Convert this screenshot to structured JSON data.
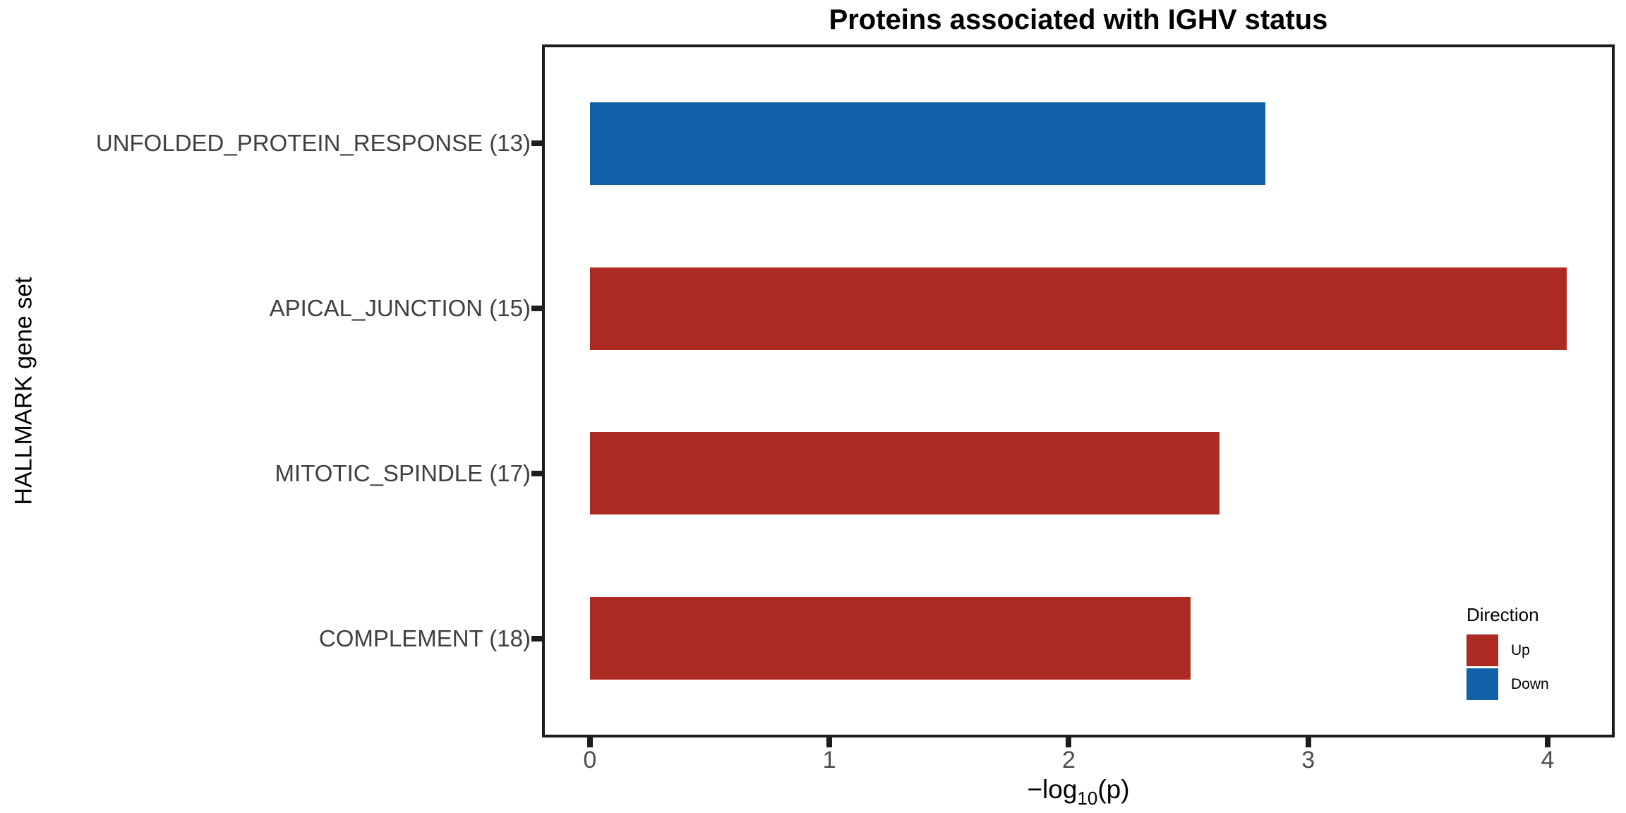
{
  "chart_data": {
    "type": "bar",
    "orientation": "horizontal",
    "title": "Proteins associated with IGHV status",
    "xlabel": "−log10(p)",
    "xlabel_parts": {
      "prefix": "−log",
      "sub": "10",
      "suffix": "(p)"
    },
    "ylabel": "HALLMARK gene set",
    "categories": [
      "UNFOLDED_PROTEIN_RESPONSE (13)",
      "APICAL_JUNCTION (15)",
      "MITOTIC_SPINDLE (17)",
      "COMPLEMENT (18)"
    ],
    "values": [
      2.82,
      4.08,
      2.63,
      2.51
    ],
    "directions": [
      "Down",
      "Up",
      "Up",
      "Up"
    ],
    "x_ticks": [
      0,
      1,
      2,
      3,
      4
    ],
    "xlim": [
      0,
      4.08
    ],
    "x_domain": [
      -0.2,
      4.28
    ],
    "grid": "off",
    "legend": {
      "title": "Direction",
      "position": "inside-bottom-right",
      "entries": [
        {
          "label": "Up",
          "color": "#AC2A21"
        },
        {
          "label": "Down",
          "color": "#1061A8"
        }
      ]
    },
    "colors": {
      "Up": "#AC2A21",
      "Down": "#1061A8"
    },
    "panel_border_color": "#1d1d1d",
    "axis_text_color": "#4d4d4d",
    "category_text_color": "#404040"
  }
}
